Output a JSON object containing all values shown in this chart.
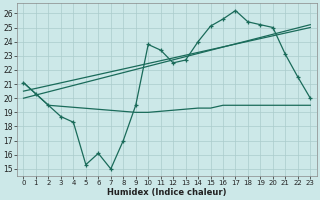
{
  "xlabel": "Humidex (Indice chaleur)",
  "background_color": "#cce8e8",
  "grid_color": "#aacccc",
  "line_color": "#1a6b5a",
  "xlim": [
    -0.5,
    23.5
  ],
  "ylim": [
    14.5,
    26.7
  ],
  "x_ticks": [
    0,
    1,
    2,
    3,
    4,
    5,
    6,
    7,
    8,
    9,
    10,
    11,
    12,
    13,
    14,
    15,
    16,
    17,
    18,
    19,
    20,
    21,
    22,
    23
  ],
  "y_ticks": [
    15,
    16,
    17,
    18,
    19,
    20,
    21,
    22,
    23,
    24,
    25,
    26
  ],
  "series_main": {
    "x": [
      0,
      1,
      2,
      3,
      4,
      5,
      6,
      7,
      8,
      9,
      10,
      11,
      12,
      13,
      14,
      15,
      16,
      17,
      18,
      19,
      20,
      21,
      22,
      23
    ],
    "y": [
      21.1,
      20.3,
      19.5,
      18.7,
      18.3,
      15.3,
      16.1,
      15.0,
      17.0,
      19.5,
      23.8,
      23.4,
      22.5,
      22.7,
      24.0,
      25.1,
      25.6,
      26.2,
      25.4,
      25.2,
      25.0,
      23.1,
      21.5,
      20.0
    ]
  },
  "series_reg1": {
    "x": [
      0,
      23
    ],
    "y": [
      20.0,
      25.2
    ]
  },
  "series_reg2": {
    "x": [
      0,
      23
    ],
    "y": [
      20.5,
      25.0
    ]
  },
  "series_flat": {
    "x": [
      0,
      1,
      2,
      9,
      10,
      14,
      15,
      16,
      17,
      18,
      19,
      20,
      21,
      22,
      23
    ],
    "y": [
      21.1,
      20.3,
      19.5,
      19.0,
      19.0,
      19.3,
      19.3,
      19.5,
      19.5,
      19.5,
      19.5,
      19.5,
      19.5,
      19.5,
      19.5
    ]
  }
}
